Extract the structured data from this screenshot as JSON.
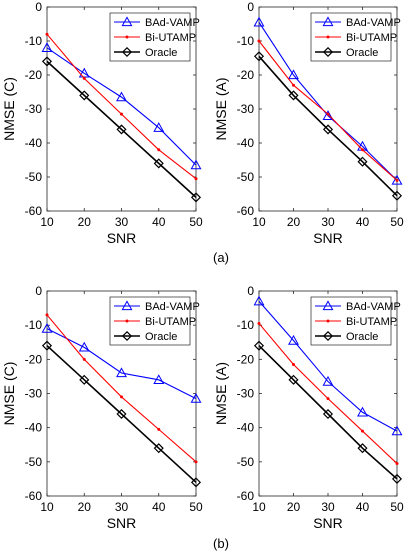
{
  "figure": {
    "captions": [
      "(a)",
      "(b)"
    ]
  },
  "styles": {
    "BAd-VAMP": {
      "color": "#0000ff",
      "marker": "triangle"
    },
    "Bi-UTAMP": {
      "color": "#ff0000",
      "marker": "dot"
    },
    "Oracle": {
      "color": "#000000",
      "marker": "diamond"
    }
  },
  "chart_data": [
    {
      "type": "line",
      "panel": "a-left",
      "xlabel": "SNR",
      "ylabel": "NMSE (C)",
      "xlim": [
        10,
        50
      ],
      "ylim": [
        -60,
        0
      ],
      "xticks": [
        10,
        20,
        30,
        40,
        50
      ],
      "yticks": [
        0,
        -10,
        -20,
        -30,
        -40,
        -50,
        -60
      ],
      "grid": false,
      "legend": "top-right",
      "x": [
        10,
        20,
        30,
        40,
        50
      ],
      "series": [
        {
          "name": "BAd-VAMP",
          "values": [
            -12,
            -19.5,
            -26.5,
            -35.5,
            -46.5
          ]
        },
        {
          "name": "Bi-UTAMP",
          "values": [
            -8,
            -21,
            -31.5,
            -42,
            -50.5
          ]
        },
        {
          "name": "Oracle",
          "values": [
            -16,
            -26,
            -36,
            -46,
            -56
          ]
        }
      ]
    },
    {
      "type": "line",
      "panel": "a-right",
      "xlabel": "SNR",
      "ylabel": "NMSE (A)",
      "xlim": [
        10,
        50
      ],
      "ylim": [
        -60,
        0
      ],
      "xticks": [
        10,
        20,
        30,
        40,
        50
      ],
      "yticks": [
        0,
        -10,
        -20,
        -30,
        -40,
        -50,
        -60
      ],
      "grid": false,
      "legend": "top-right",
      "x": [
        10,
        20,
        30,
        40,
        50
      ],
      "series": [
        {
          "name": "BAd-VAMP",
          "values": [
            -4.5,
            -20,
            -32,
            -41,
            -51
          ]
        },
        {
          "name": "Bi-UTAMP",
          "values": [
            -10,
            -23,
            -31.5,
            -42,
            -51
          ]
        },
        {
          "name": "Oracle",
          "values": [
            -14.5,
            -26,
            -36,
            -45.5,
            -55.5
          ]
        }
      ]
    },
    {
      "type": "line",
      "panel": "b-left",
      "xlabel": "SNR",
      "ylabel": "NMSE (C)",
      "xlim": [
        10,
        50
      ],
      "ylim": [
        -60,
        0
      ],
      "xticks": [
        10,
        20,
        30,
        40,
        50
      ],
      "yticks": [
        0,
        -10,
        -20,
        -30,
        -40,
        -50,
        -60
      ],
      "grid": false,
      "legend": "top-right",
      "x": [
        10,
        20,
        30,
        40,
        50
      ],
      "series": [
        {
          "name": "BAd-VAMP",
          "values": [
            -11,
            -16.5,
            -24,
            -26,
            -31.5
          ]
        },
        {
          "name": "Bi-UTAMP",
          "values": [
            -7,
            -20,
            -31,
            -40.5,
            -50
          ]
        },
        {
          "name": "Oracle",
          "values": [
            -16,
            -26,
            -36,
            -46,
            -56
          ]
        }
      ]
    },
    {
      "type": "line",
      "panel": "b-right",
      "xlabel": "SNR",
      "ylabel": "NMSE (A)",
      "xlim": [
        10,
        50
      ],
      "ylim": [
        -60,
        0
      ],
      "xticks": [
        10,
        20,
        30,
        40,
        50
      ],
      "yticks": [
        0,
        -10,
        -20,
        -30,
        -40,
        -50,
        -60
      ],
      "grid": false,
      "legend": "top-right",
      "x": [
        10,
        20,
        30,
        40,
        50
      ],
      "series": [
        {
          "name": "BAd-VAMP",
          "values": [
            -3,
            -14.5,
            -26.5,
            -35.5,
            -41
          ]
        },
        {
          "name": "Bi-UTAMP",
          "values": [
            -9.5,
            -21.5,
            -31.5,
            -41,
            -50.5
          ]
        },
        {
          "name": "Oracle",
          "values": [
            -16,
            -26,
            -36,
            -46,
            -55
          ]
        }
      ]
    }
  ]
}
